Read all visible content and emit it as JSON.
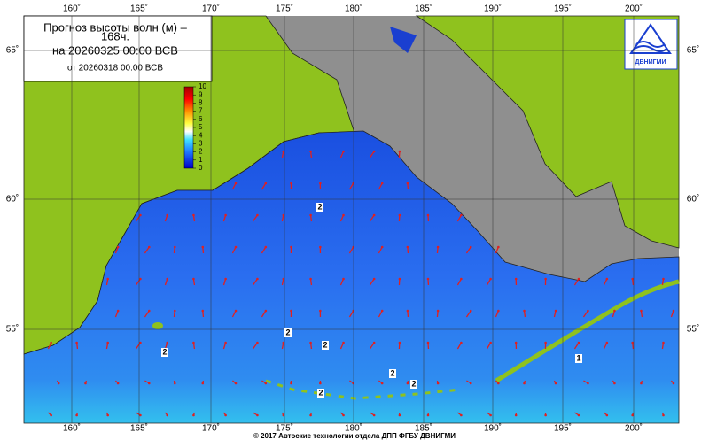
{
  "title": {
    "line1": "Прогноз высоты волн (м) –",
    "line2": "168ч.",
    "line3": "на 20260325 00:00 ВСВ",
    "line4": "от 20260318 00:00 ВСВ"
  },
  "colorbar": {
    "lim": [
      0,
      10
    ],
    "ticks": [
      0,
      1,
      2,
      3,
      4,
      5,
      6,
      7,
      8,
      9,
      10
    ]
  },
  "longitude_labels": [
    "160˚",
    "165˚",
    "170˚",
    "175˚",
    "180˚",
    "185˚",
    "190˚",
    "195˚",
    "200˚"
  ],
  "latitude_labels": [
    "65˚",
    "60˚",
    "55˚"
  ],
  "contour_labels": [
    "2",
    "2",
    "2",
    "2",
    "2",
    "2",
    "2",
    "1"
  ],
  "logo": "ДВНИГМИ",
  "footer": "© 2017 Автоские технологии отдела ДПП ФГБУ ДВНИГМИ"
}
